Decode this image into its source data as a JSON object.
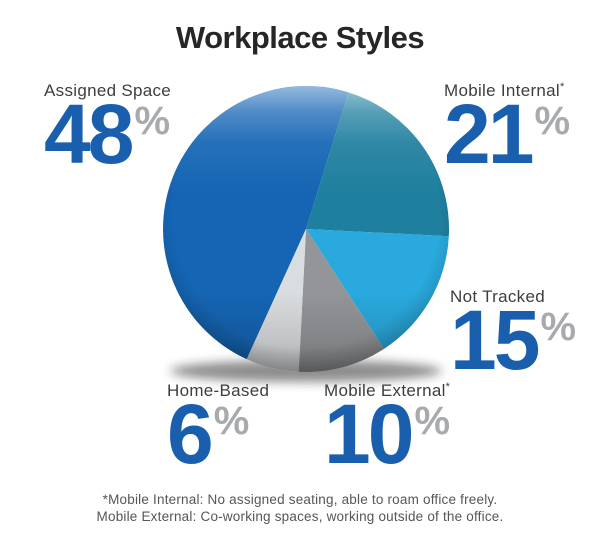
{
  "title": "Workplace Styles",
  "chart_data": {
    "type": "pie",
    "title": "Workplace Styles",
    "rotation_deg": 204.5,
    "value_suffix": "%",
    "legend_position": "around",
    "segments": [
      {
        "label": "Assigned Space",
        "value": 48,
        "color": "#1565b4",
        "note_marker": ""
      },
      {
        "label": "Mobile Internal",
        "value": 21,
        "color": "#1f7f9f",
        "note_marker": "*"
      },
      {
        "label": "Not Tracked",
        "value": 15,
        "color": "#29a9dd",
        "note_marker": ""
      },
      {
        "label": "Mobile External",
        "value": 10,
        "color": "#939598",
        "note_marker": "*"
      },
      {
        "label": "Home-Based",
        "value": 6,
        "color": "#dadddf",
        "note_marker": ""
      }
    ]
  },
  "footnote": {
    "line1": "*Mobile Internal: No assigned seating, able to roam office freely.",
    "line2": "Mobile External: Co-working spaces, working outside of the office."
  },
  "colors": {
    "value_blue": "#1a5fae",
    "percent_gray": "#a8aaad",
    "label_dark": "#3e3e40",
    "title_dark": "#262626",
    "footnote_gray": "#565658",
    "background": "#ffffff"
  }
}
